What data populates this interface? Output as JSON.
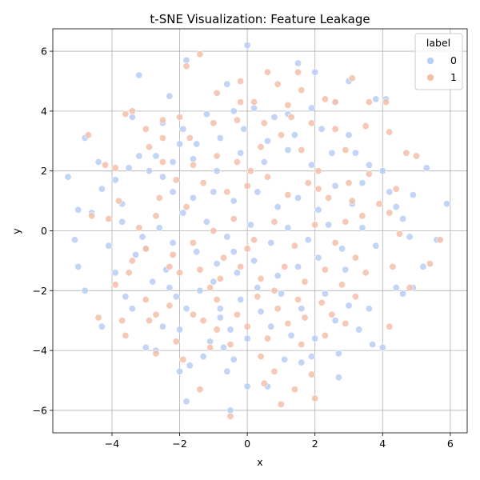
{
  "chart_data": {
    "type": "scatter",
    "title": "t-SNE Visualization: Feature Leakage",
    "xlabel": "x",
    "ylabel": "y",
    "xlim": [
      -5.75,
      6.5
    ],
    "ylim": [
      -6.75,
      6.75
    ],
    "xticks": [
      -4,
      -2,
      0,
      2,
      4,
      6
    ],
    "yticks": [
      -6,
      -4,
      -2,
      0,
      2,
      4,
      6
    ],
    "grid": true,
    "legend": {
      "title": "label",
      "placement": "top-right"
    },
    "series": [
      {
        "name": "0",
        "color": "#b8cef5",
        "points": [
          [
            0,
            6.2
          ],
          [
            -0.6,
            4.9
          ],
          [
            2.0,
            5.3
          ],
          [
            3.0,
            5.0
          ],
          [
            1.5,
            5.6
          ],
          [
            -1.8,
            5.7
          ],
          [
            -3.2,
            5.2
          ],
          [
            -2.3,
            4.5
          ],
          [
            3.8,
            4.4
          ],
          [
            4.1,
            4.4
          ],
          [
            -4.8,
            3.1
          ],
          [
            -4.4,
            2.3
          ],
          [
            -3.5,
            2.1
          ],
          [
            -2.7,
            2.5
          ],
          [
            -2.0,
            2.9
          ],
          [
            -5.3,
            1.8
          ],
          [
            -5.0,
            0.7
          ],
          [
            -4.6,
            0.6
          ],
          [
            -4.3,
            1.4
          ],
          [
            -3.7,
            0.9
          ],
          [
            -5.1,
            -0.3
          ],
          [
            -4.1,
            -0.5
          ],
          [
            -3.1,
            -0.2
          ],
          [
            -3.3,
            -0.8
          ],
          [
            -5.0,
            -1.2
          ],
          [
            -4.8,
            -2.0
          ],
          [
            -3.6,
            -2.2
          ],
          [
            -3.9,
            -1.4
          ],
          [
            -4.3,
            -3.2
          ],
          [
            -3.4,
            -2.6
          ],
          [
            -2.8,
            -1.7
          ],
          [
            -2.1,
            -2.2
          ],
          [
            -2.5,
            -3.2
          ],
          [
            -1.8,
            -2.6
          ],
          [
            -2.0,
            -3.3
          ],
          [
            -3.0,
            -3.9
          ],
          [
            -2.7,
            -4.0
          ],
          [
            -2.0,
            -4.7
          ],
          [
            -1.7,
            -4.5
          ],
          [
            -1.8,
            -5.7
          ],
          [
            -1.1,
            -3.7
          ],
          [
            -0.8,
            -2.9
          ],
          [
            -0.5,
            -3.3
          ],
          [
            -0.4,
            -4.3
          ],
          [
            -0.6,
            -4.7
          ],
          [
            -0.5,
            -6.0
          ],
          [
            0.0,
            -5.2
          ],
          [
            0.6,
            -5.2
          ],
          [
            1.1,
            -4.3
          ],
          [
            1.6,
            -4.4
          ],
          [
            1.9,
            -4.2
          ],
          [
            2.7,
            -4.1
          ],
          [
            2.7,
            -4.9
          ],
          [
            3.7,
            -3.8
          ],
          [
            4.0,
            -3.9
          ],
          [
            3.0,
            -2.5
          ],
          [
            3.6,
            -2.6
          ],
          [
            4.4,
            -1.9
          ],
          [
            4.6,
            -2.1
          ],
          [
            4.9,
            -1.9
          ],
          [
            5.2,
            -1.2
          ],
          [
            5.6,
            -0.3
          ],
          [
            5.9,
            0.9
          ],
          [
            4.9,
            1.2
          ],
          [
            5.3,
            2.1
          ],
          [
            4.8,
            -0.2
          ],
          [
            4.6,
            0.4
          ],
          [
            4.4,
            0.8
          ],
          [
            4.2,
            1.3
          ],
          [
            3.8,
            -0.5
          ],
          [
            3.6,
            2.2
          ],
          [
            3.0,
            3.2
          ],
          [
            3.2,
            2.6
          ],
          [
            2.6,
            4.3
          ],
          [
            1.9,
            4.1
          ],
          [
            1.2,
            3.9
          ],
          [
            0.8,
            3.8
          ],
          [
            0.2,
            4.1
          ],
          [
            -0.4,
            4.0
          ],
          [
            -1.2,
            3.9
          ],
          [
            -1.9,
            3.4
          ],
          [
            -2.5,
            3.6
          ],
          [
            -3.4,
            3.8
          ],
          [
            -2.9,
            2.0
          ],
          [
            -2.2,
            1.3
          ],
          [
            -1.6,
            1.1
          ],
          [
            -1.0,
            1.3
          ],
          [
            -0.4,
            1.0
          ],
          [
            0.3,
            1.3
          ],
          [
            0.9,
            0.8
          ],
          [
            1.5,
            1.1
          ],
          [
            2.1,
            0.7
          ],
          [
            2.6,
            1.5
          ],
          [
            3.1,
            0.9
          ],
          [
            3.4,
            0.1
          ],
          [
            2.8,
            -0.6
          ],
          [
            2.1,
            -0.9
          ],
          [
            1.5,
            -1.2
          ],
          [
            0.9,
            -1.5
          ],
          [
            0.3,
            -1.9
          ],
          [
            -0.3,
            -1.4
          ],
          [
            -0.9,
            -1.1
          ],
          [
            -1.5,
            -0.7
          ],
          [
            -2.2,
            -0.4
          ],
          [
            -2.6,
            0.1
          ],
          [
            -1.9,
            0.6
          ],
          [
            -1.2,
            0.3
          ],
          [
            -0.6,
            -0.2
          ],
          [
            0.1,
            0.2
          ],
          [
            0.7,
            -0.4
          ],
          [
            1.2,
            0.1
          ],
          [
            1.8,
            -0.3
          ],
          [
            2.4,
            0.2
          ],
          [
            2.9,
            -1.3
          ],
          [
            2.3,
            -2.1
          ],
          [
            1.6,
            -2.6
          ],
          [
            1.0,
            -2.1
          ],
          [
            0.4,
            -2.7
          ],
          [
            -0.2,
            -2.3
          ],
          [
            -0.8,
            -2.6
          ],
          [
            -1.4,
            -2.0
          ],
          [
            -2.4,
            -1.3
          ],
          [
            -3.0,
            -0.6
          ],
          [
            -3.7,
            0.3
          ],
          [
            -3.9,
            1.7
          ],
          [
            -3.2,
            2.5
          ],
          [
            -2.5,
            1.8
          ],
          [
            -1.6,
            2.4
          ],
          [
            -0.9,
            2.0
          ],
          [
            -0.2,
            2.6
          ],
          [
            0.5,
            2.3
          ],
          [
            1.2,
            2.7
          ],
          [
            1.9,
            2.2
          ],
          [
            2.5,
            2.6
          ],
          [
            3.4,
            1.6
          ],
          [
            4.0,
            2.0
          ],
          [
            2.2,
            3.4
          ],
          [
            1.4,
            3.2
          ],
          [
            0.6,
            3.0
          ],
          [
            -0.1,
            3.4
          ],
          [
            -0.8,
            3.1
          ],
          [
            -1.5,
            2.9
          ],
          [
            -2.2,
            2.3
          ],
          [
            0.0,
            -3.6
          ],
          [
            0.7,
            -3.2
          ],
          [
            1.3,
            -3.5
          ],
          [
            2.0,
            -3.6
          ],
          [
            2.6,
            -3.0
          ],
          [
            3.3,
            -3.3
          ],
          [
            -0.7,
            -3.9
          ],
          [
            -1.3,
            -4.2
          ],
          [
            -2.3,
            -1.9
          ],
          [
            -1.0,
            -1.7
          ],
          [
            -0.4,
            -0.7
          ],
          [
            0.2,
            -1.0
          ]
        ]
      },
      {
        "name": "1",
        "color": "#f3c0a8",
        "points": [
          [
            -1.4,
            5.9
          ],
          [
            -1.8,
            5.5
          ],
          [
            1.5,
            5.3
          ],
          [
            3.1,
            5.1
          ],
          [
            0.9,
            4.9
          ],
          [
            -0.2,
            4.3
          ],
          [
            0.2,
            4.3
          ],
          [
            1.2,
            4.2
          ],
          [
            2.3,
            4.4
          ],
          [
            2.6,
            4.3
          ],
          [
            3.6,
            4.3
          ],
          [
            4.1,
            4.3
          ],
          [
            -3.4,
            4.0
          ],
          [
            -3.6,
            3.9
          ],
          [
            -2.0,
            3.8
          ],
          [
            -2.5,
            3.7
          ],
          [
            -3.0,
            3.4
          ],
          [
            -2.9,
            2.8
          ],
          [
            -2.5,
            2.3
          ],
          [
            -4.7,
            3.2
          ],
          [
            -4.2,
            2.2
          ],
          [
            -3.9,
            2.1
          ],
          [
            -4.6,
            0.5
          ],
          [
            -4.1,
            0.4
          ],
          [
            -3.8,
            1.0
          ],
          [
            -3.2,
            0.1
          ],
          [
            -3.0,
            -0.6
          ],
          [
            -3.5,
            -1.4
          ],
          [
            -3.9,
            -1.8
          ],
          [
            -3.7,
            -3.0
          ],
          [
            -3.6,
            -3.5
          ],
          [
            -3.0,
            -2.3
          ],
          [
            -2.9,
            -3.0
          ],
          [
            -2.7,
            -2.8
          ],
          [
            -2.7,
            -4.1
          ],
          [
            -2.1,
            -3.7
          ],
          [
            -1.9,
            -4.3
          ],
          [
            -1.3,
            -3.0
          ],
          [
            -0.9,
            -3.3
          ],
          [
            -1.4,
            -5.3
          ],
          [
            -0.5,
            -6.2
          ],
          [
            0.4,
            -4.2
          ],
          [
            0.5,
            -5.1
          ],
          [
            1.0,
            -5.8
          ],
          [
            1.4,
            -5.3
          ],
          [
            0.8,
            -4.7
          ],
          [
            1.6,
            -3.8
          ],
          [
            1.9,
            -4.8
          ],
          [
            2.3,
            -3.5
          ],
          [
            2.0,
            -5.6
          ],
          [
            2.9,
            -3.1
          ],
          [
            3.2,
            -2.2
          ],
          [
            3.5,
            -1.4
          ],
          [
            4.2,
            -3.2
          ],
          [
            4.3,
            -1.2
          ],
          [
            4.8,
            -1.9
          ],
          [
            5.4,
            -1.1
          ],
          [
            5.7,
            -0.3
          ],
          [
            4.5,
            -0.1
          ],
          [
            4.2,
            0.6
          ],
          [
            3.4,
            0.5
          ],
          [
            3.1,
            1.0
          ],
          [
            3.6,
            1.9
          ],
          [
            4.7,
            2.6
          ],
          [
            5.0,
            2.5
          ],
          [
            4.2,
            3.3
          ],
          [
            3.5,
            3.5
          ],
          [
            2.9,
            2.7
          ],
          [
            2.6,
            3.4
          ],
          [
            2.1,
            2.0
          ],
          [
            1.6,
            2.7
          ],
          [
            1.0,
            3.2
          ],
          [
            0.4,
            2.8
          ],
          [
            -0.3,
            2.3
          ],
          [
            -0.9,
            2.5
          ],
          [
            -1.6,
            2.2
          ],
          [
            -2.1,
            1.7
          ],
          [
            -2.6,
            1.1
          ],
          [
            -1.8,
            0.8
          ],
          [
            -1.3,
            1.6
          ],
          [
            -0.6,
            1.3
          ],
          [
            0.0,
            1.5
          ],
          [
            0.6,
            1.8
          ],
          [
            1.2,
            1.2
          ],
          [
            1.8,
            1.6
          ],
          [
            2.4,
            1.1
          ],
          [
            2.9,
            0.3
          ],
          [
            2.6,
            -0.4
          ],
          [
            2.0,
            0.2
          ],
          [
            1.4,
            -0.5
          ],
          [
            0.8,
            0.3
          ],
          [
            0.2,
            -0.3
          ],
          [
            -0.4,
            0.4
          ],
          [
            -1.0,
            0.0
          ],
          [
            -1.6,
            -0.4
          ],
          [
            -2.2,
            -0.8
          ],
          [
            -2.0,
            -1.4
          ],
          [
            -1.4,
            -1.3
          ],
          [
            -0.8,
            -1.6
          ],
          [
            -0.2,
            -1.2
          ],
          [
            0.4,
            -1.6
          ],
          [
            1.1,
            -1.2
          ],
          [
            1.7,
            -1.7
          ],
          [
            2.3,
            -1.3
          ],
          [
            2.8,
            -1.8
          ],
          [
            2.2,
            -2.4
          ],
          [
            1.5,
            -2.3
          ],
          [
            0.9,
            -2.6
          ],
          [
            0.3,
            -2.2
          ],
          [
            -0.3,
            -2.8
          ],
          [
            -0.9,
            -2.3
          ],
          [
            -1.6,
            -2.8
          ],
          [
            -2.3,
            -2.5
          ],
          [
            0.0,
            -3.2
          ],
          [
            0.6,
            -3.6
          ],
          [
            1.2,
            -3.1
          ],
          [
            -0.5,
            -3.8
          ],
          [
            -1.1,
            -3.9
          ],
          [
            -2.3,
            -1.2
          ],
          [
            -1.7,
            3.1
          ],
          [
            -1.0,
            3.6
          ],
          [
            -0.3,
            3.7
          ],
          [
            0.5,
            3.6
          ],
          [
            1.3,
            3.8
          ],
          [
            1.9,
            3.6
          ],
          [
            -2.5,
            3.1
          ],
          [
            -0.9,
            4.6
          ],
          [
            -0.2,
            5.0
          ],
          [
            0.6,
            5.3
          ],
          [
            1.6,
            4.7
          ],
          [
            3.0,
            1.6
          ],
          [
            3.9,
            0.9
          ],
          [
            4.4,
            1.4
          ],
          [
            3.2,
            -0.9
          ],
          [
            2.5,
            -2.8
          ],
          [
            1.7,
            -2.9
          ],
          [
            0.8,
            -2.0
          ],
          [
            0.0,
            -0.6
          ],
          [
            -0.7,
            -0.9
          ],
          [
            -2.7,
            0.5
          ],
          [
            -3.4,
            -1.0
          ],
          [
            -4.4,
            -2.9
          ],
          [
            -1.1,
            -1.9
          ],
          [
            2.1,
            1.4
          ],
          [
            0.1,
            2.0
          ]
        ]
      }
    ]
  }
}
